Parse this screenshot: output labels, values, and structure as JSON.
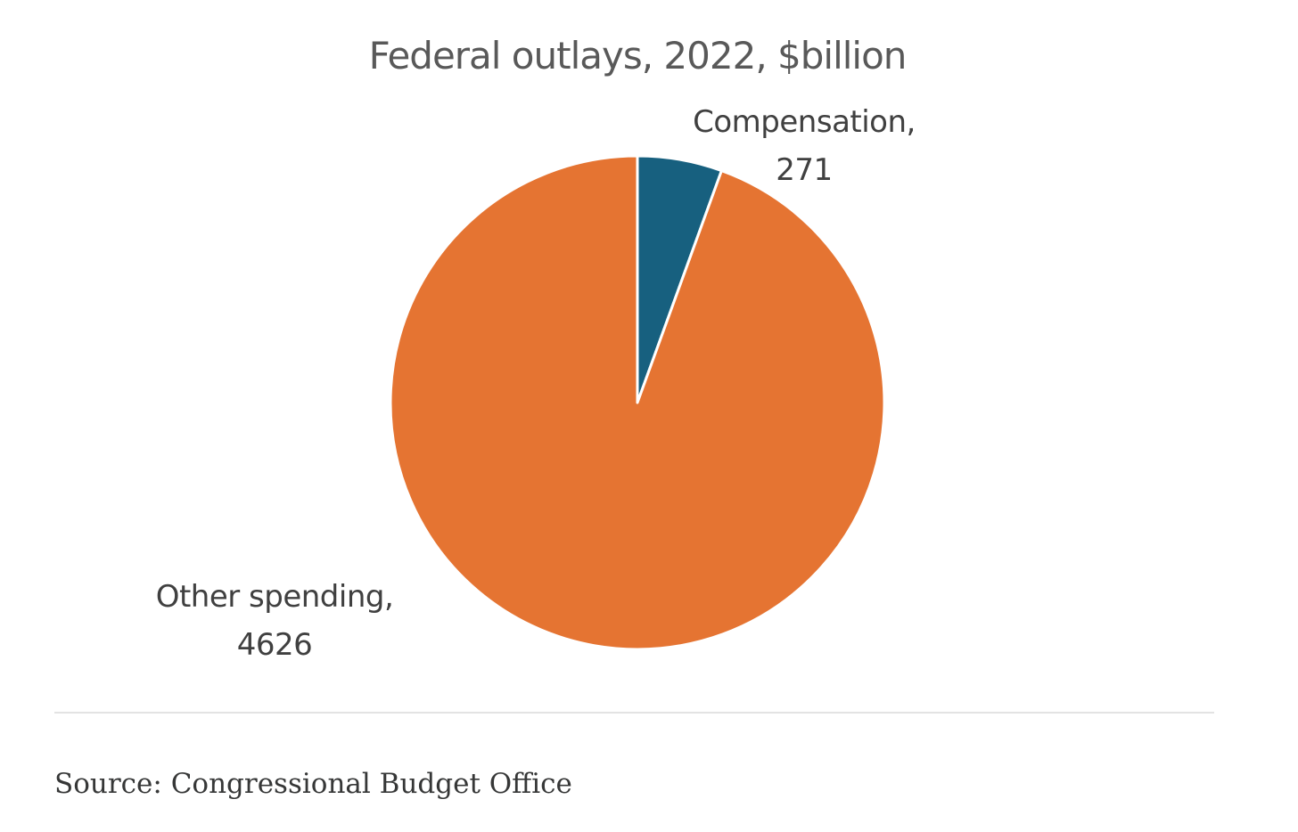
{
  "chart_data": {
    "type": "pie",
    "title": "Federal outlays, 2022, $billion",
    "categories": [
      "Compensation",
      "Other spending"
    ],
    "values": [
      271,
      4626
    ],
    "colors": [
      "#17607f",
      "#e57432"
    ],
    "labels": {
      "compensation": {
        "name": "Compensation,",
        "value": "271"
      },
      "other": {
        "name": "Other spending,",
        "value": "4626"
      }
    },
    "start_angle": "12 o'clock",
    "direction": "clockwise",
    "legend": "none"
  },
  "source": "Source: Congressional Budget Office"
}
